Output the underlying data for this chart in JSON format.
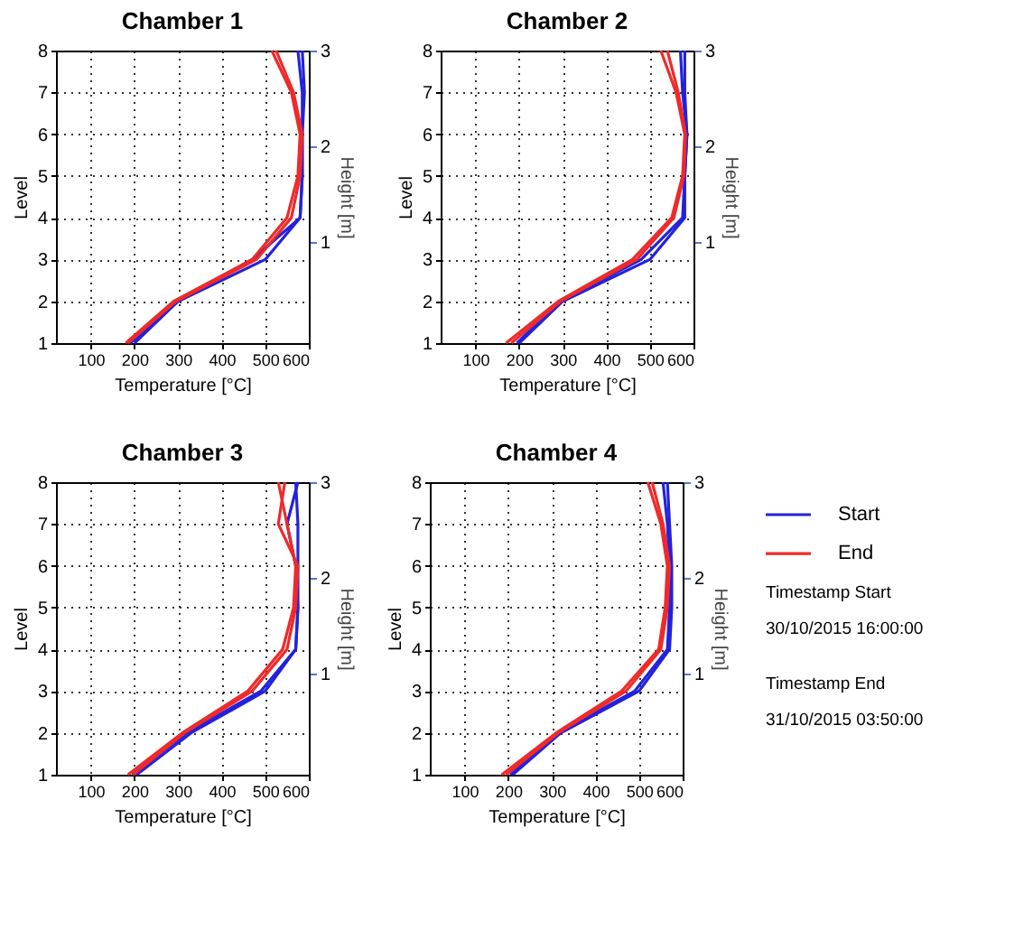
{
  "chart_data": [
    {
      "type": "line",
      "title": "Chamber 1",
      "xlabel": "Temperature [°C]",
      "ylabel": "Level",
      "y2label": "Height [m]",
      "xlim": [
        20,
        600
      ],
      "xticks": [
        100,
        200,
        300,
        400,
        500,
        600
      ],
      "ylim": [
        1,
        8
      ],
      "yticks": [
        1,
        2,
        3,
        4,
        5,
        6,
        7,
        8
      ],
      "y2lim": [
        -0.05,
        3
      ],
      "y2ticks": [
        1,
        2,
        3
      ],
      "grid": true,
      "line_style": "solid",
      "series": [
        {
          "color": "#2222dd",
          "x": [
            200,
            300,
            500,
            580,
            585,
            585,
            585,
            575
          ],
          "values": [
            1,
            2,
            3,
            4,
            5,
            6,
            7,
            8
          ]
        },
        {
          "color": "#2222dd",
          "x": [
            190,
            300,
            470,
            580,
            585,
            585,
            590,
            585
          ],
          "values": [
            1,
            2,
            3,
            4,
            5,
            6,
            7,
            8
          ]
        },
        {
          "color": "#ee2a2a",
          "x": [
            180,
            290,
            470,
            550,
            575,
            580,
            560,
            515
          ],
          "values": [
            1,
            2,
            3,
            4,
            5,
            6,
            7,
            8
          ]
        },
        {
          "color": "#ee2a2a",
          "x": [
            185,
            295,
            480,
            560,
            580,
            585,
            565,
            525
          ],
          "values": [
            1,
            2,
            3,
            4,
            5,
            6,
            7,
            8
          ]
        }
      ]
    },
    {
      "type": "line",
      "title": "Chamber 2",
      "xlabel": "Temperature [°C]",
      "ylabel": "Level",
      "y2label": "Height [m]",
      "xlim": [
        20,
        600
      ],
      "xticks": [
        100,
        200,
        300,
        400,
        500,
        600
      ],
      "ylim": [
        1,
        8
      ],
      "yticks": [
        1,
        2,
        3,
        4,
        5,
        6,
        7,
        8
      ],
      "y2lim": [
        -0.05,
        3
      ],
      "y2ticks": [
        1,
        2,
        3
      ],
      "grid": true,
      "line_style": "solid",
      "series": [
        {
          "color": "#2222dd",
          "x": [
            200,
            300,
            500,
            580,
            580,
            585,
            580,
            580
          ],
          "values": [
            1,
            2,
            3,
            4,
            5,
            6,
            7,
            8
          ]
        },
        {
          "color": "#2222dd",
          "x": [
            195,
            295,
            480,
            575,
            580,
            585,
            575,
            570
          ],
          "values": [
            1,
            2,
            3,
            4,
            5,
            6,
            7,
            8
          ]
        },
        {
          "color": "#ee2a2a",
          "x": [
            170,
            290,
            460,
            550,
            575,
            580,
            560,
            525
          ],
          "values": [
            1,
            2,
            3,
            4,
            5,
            6,
            7,
            8
          ]
        },
        {
          "color": "#ee2a2a",
          "x": [
            182,
            295,
            470,
            555,
            578,
            582,
            565,
            540
          ],
          "values": [
            1,
            2,
            3,
            4,
            5,
            6,
            7,
            8
          ]
        }
      ]
    },
    {
      "type": "line",
      "title": "Chamber 3",
      "xlabel": "Temperature [°C]",
      "ylabel": "Level",
      "y2label": "Height [m]",
      "xlim": [
        20,
        600
      ],
      "xticks": [
        100,
        200,
        300,
        400,
        500,
        600
      ],
      "ylim": [
        1,
        8
      ],
      "yticks": [
        1,
        2,
        3,
        4,
        5,
        6,
        7,
        8
      ],
      "y2lim": [
        -0.05,
        3
      ],
      "y2ticks": [
        1,
        2,
        3
      ],
      "grid": true,
      "line_style": "solid",
      "series": [
        {
          "color": "#2222dd",
          "x": [
            205,
            330,
            500,
            570,
            575,
            575,
            575,
            570
          ],
          "values": [
            1,
            2,
            3,
            4,
            5,
            6,
            7,
            8
          ]
        },
        {
          "color": "#2222dd",
          "x": [
            195,
            320,
            490,
            570,
            575,
            570,
            550,
            575
          ],
          "values": [
            1,
            2,
            3,
            4,
            5,
            6,
            7,
            8
          ]
        },
        {
          "color": "#ee2a2a",
          "x": [
            185,
            310,
            460,
            540,
            565,
            570,
            550,
            530
          ],
          "values": [
            1,
            2,
            3,
            4,
            5,
            6,
            7,
            8
          ]
        },
        {
          "color": "#ee2a2a",
          "x": [
            197,
            315,
            470,
            550,
            570,
            575,
            530,
            545
          ],
          "values": [
            1,
            2,
            3,
            4,
            5,
            6,
            7,
            8
          ]
        }
      ]
    },
    {
      "type": "line",
      "title": "Chamber 4",
      "xlabel": "Temperature [°C]",
      "ylabel": "Level",
      "y2label": "Height [m]",
      "xlim": [
        20,
        600
      ],
      "xticks": [
        100,
        200,
        300,
        400,
        500,
        600
      ],
      "ylim": [
        1,
        8
      ],
      "yticks": [
        1,
        2,
        3,
        4,
        5,
        6,
        7,
        8
      ],
      "y2lim": [
        -0.05,
        3
      ],
      "y2ticks": [
        1,
        2,
        3
      ],
      "grid": true,
      "line_style": "solid",
      "legend": "right",
      "annotations": [
        "Timestamp Start",
        "30/10/2015 16:00:00",
        "Timestamp End",
        "31/10/2015 03:50:00"
      ],
      "series": [
        {
          "name": "Start",
          "color": "#2222dd",
          "x": [
            210,
            320,
            500,
            570,
            575,
            575,
            570,
            565
          ],
          "values": [
            1,
            2,
            3,
            4,
            5,
            6,
            7,
            8
          ]
        },
        {
          "color": "#2222dd",
          "x": [
            205,
            315,
            490,
            565,
            570,
            570,
            565,
            555
          ],
          "values": [
            1,
            2,
            3,
            4,
            5,
            6,
            7,
            8
          ]
        },
        {
          "name": "End",
          "color": "#ee2a2a",
          "x": [
            185,
            310,
            460,
            545,
            560,
            565,
            550,
            520
          ],
          "values": [
            1,
            2,
            3,
            4,
            5,
            6,
            7,
            8
          ]
        },
        {
          "color": "#ee2a2a",
          "x": [
            195,
            315,
            470,
            550,
            565,
            570,
            555,
            530
          ],
          "values": [
            1,
            2,
            3,
            4,
            5,
            6,
            7,
            8
          ]
        }
      ]
    }
  ]
}
